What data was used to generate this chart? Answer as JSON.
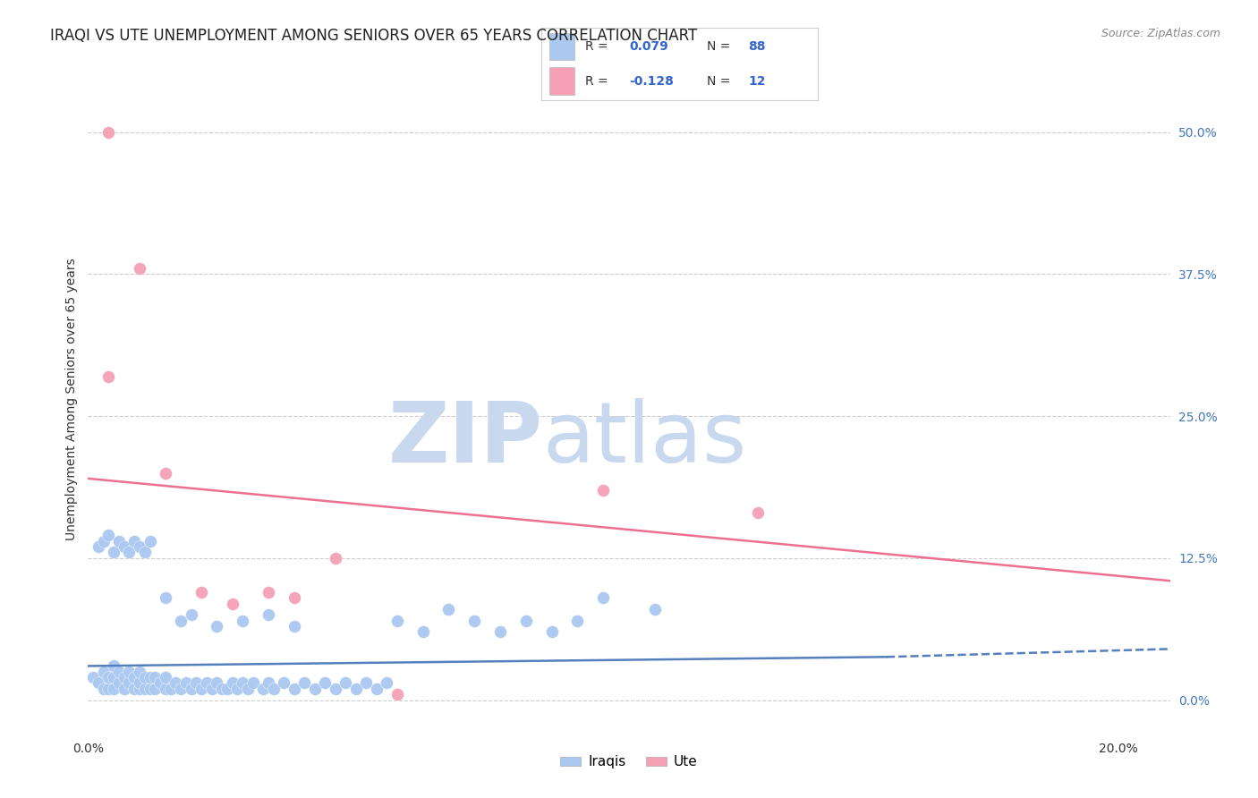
{
  "title": "IRAQI VS UTE UNEMPLOYMENT AMONG SENIORS OVER 65 YEARS CORRELATION CHART",
  "source": "Source: ZipAtlas.com",
  "ylabel": "Unemployment Among Seniors over 65 years",
  "xlim": [
    0.0,
    0.21
  ],
  "ylim": [
    -0.03,
    0.56
  ],
  "xticks": [
    0.0,
    0.05,
    0.1,
    0.15,
    0.2
  ],
  "xtick_labels": [
    "0.0%",
    "",
    "",
    "",
    "20.0%"
  ],
  "ytick_labels_right": [
    "0.0%",
    "12.5%",
    "25.0%",
    "37.5%",
    "50.0%"
  ],
  "yticks_right": [
    0.0,
    0.125,
    0.25,
    0.375,
    0.5
  ],
  "legend_label1": "Iraqis",
  "legend_label2": "Ute",
  "R_iraqi": "0.079",
  "N_iraqi": "88",
  "R_ute": "-0.128",
  "N_ute": "12",
  "iraqi_color": "#aac8f0",
  "ute_color": "#f5a0b5",
  "iraqi_line_color": "#5580bb",
  "ute_line_color": "#ee7090",
  "background_color": "#ffffff",
  "watermark_zip": "ZIP",
  "watermark_atlas": "atlas",
  "watermark_color_zip": "#c8d8ee",
  "watermark_color_atlas": "#c8d8ee",
  "title_fontsize": 12,
  "axis_label_fontsize": 10,
  "tick_fontsize": 10,
  "source_fontsize": 9,
  "iraqi_x": [
    0.001,
    0.002,
    0.003,
    0.003,
    0.004,
    0.004,
    0.005,
    0.005,
    0.005,
    0.006,
    0.006,
    0.007,
    0.007,
    0.008,
    0.008,
    0.009,
    0.009,
    0.01,
    0.01,
    0.01,
    0.011,
    0.011,
    0.012,
    0.012,
    0.013,
    0.013,
    0.014,
    0.015,
    0.015,
    0.016,
    0.017,
    0.018,
    0.019,
    0.02,
    0.021,
    0.022,
    0.023,
    0.024,
    0.025,
    0.026,
    0.027,
    0.028,
    0.029,
    0.03,
    0.031,
    0.032,
    0.034,
    0.035,
    0.036,
    0.038,
    0.04,
    0.042,
    0.044,
    0.046,
    0.048,
    0.05,
    0.052,
    0.054,
    0.056,
    0.058,
    0.06,
    0.065,
    0.07,
    0.075,
    0.08,
    0.085,
    0.09,
    0.095,
    0.1,
    0.11,
    0.002,
    0.003,
    0.004,
    0.005,
    0.006,
    0.007,
    0.008,
    0.009,
    0.01,
    0.011,
    0.012,
    0.015,
    0.018,
    0.02,
    0.025,
    0.03,
    0.035,
    0.04
  ],
  "iraqi_y": [
    0.02,
    0.015,
    0.01,
    0.025,
    0.01,
    0.02,
    0.01,
    0.02,
    0.03,
    0.015,
    0.025,
    0.01,
    0.02,
    0.015,
    0.025,
    0.01,
    0.02,
    0.01,
    0.015,
    0.025,
    0.01,
    0.02,
    0.01,
    0.02,
    0.01,
    0.02,
    0.015,
    0.01,
    0.02,
    0.01,
    0.015,
    0.01,
    0.015,
    0.01,
    0.015,
    0.01,
    0.015,
    0.01,
    0.015,
    0.01,
    0.01,
    0.015,
    0.01,
    0.015,
    0.01,
    0.015,
    0.01,
    0.015,
    0.01,
    0.015,
    0.01,
    0.015,
    0.01,
    0.015,
    0.01,
    0.015,
    0.01,
    0.015,
    0.01,
    0.015,
    0.07,
    0.06,
    0.08,
    0.07,
    0.06,
    0.07,
    0.06,
    0.07,
    0.09,
    0.08,
    0.135,
    0.14,
    0.145,
    0.13,
    0.14,
    0.135,
    0.13,
    0.14,
    0.135,
    0.13,
    0.14,
    0.09,
    0.07,
    0.075,
    0.065,
    0.07,
    0.075,
    0.065
  ],
  "ute_x": [
    0.004,
    0.004,
    0.01,
    0.015,
    0.022,
    0.028,
    0.035,
    0.04,
    0.048,
    0.06,
    0.1,
    0.13
  ],
  "ute_y": [
    0.5,
    0.285,
    0.38,
    0.2,
    0.095,
    0.085,
    0.095,
    0.09,
    0.125,
    0.005,
    0.185,
    0.165
  ],
  "ute_trend_x": [
    0.0,
    0.21
  ],
  "ute_trend_y": [
    0.195,
    0.105
  ],
  "iraqi_trend_x": [
    0.0,
    0.155,
    0.21
  ],
  "iraqi_trend_y": [
    0.03,
    0.038,
    0.045
  ]
}
